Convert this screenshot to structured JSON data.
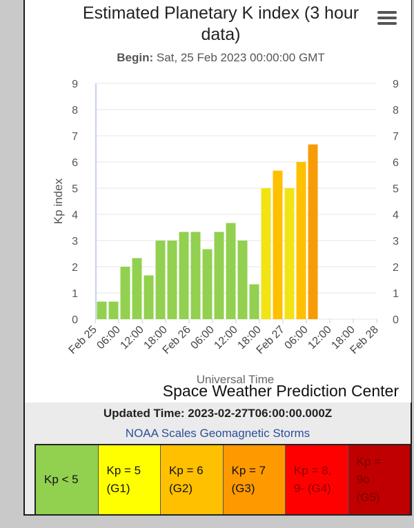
{
  "title": "Estimated Planetary K index (3 hour data)",
  "subtitle_label": "Begin:",
  "subtitle_value": "Sat, 25 Feb 2023 00:00:00 GMT",
  "credit": "Space Weather Prediction Center",
  "updated": "Updated Time: 2023-02-27T06:00:00.000Z",
  "scales_link": "NOAA Scales Geomagnetic Storms",
  "colors": {
    "green": "#92d050",
    "yellow": "#f2e313",
    "amber": "#ffc000",
    "orange": "#f79c06",
    "red": "#ff0000",
    "darkred": "#c00000"
  },
  "scales": [
    {
      "line1": "Kp < 5",
      "line2": "",
      "bg": "#92d050",
      "fg": "#111111"
    },
    {
      "line1": "Kp = 5",
      "line2": "(G1)",
      "bg": "#ffff00",
      "fg": "#111111"
    },
    {
      "line1": "Kp = 6",
      "line2": "(G2)",
      "bg": "#ffc000",
      "fg": "#111111"
    },
    {
      "line1": "Kp = 7",
      "line2": "(G3)",
      "bg": "#ff9900",
      "fg": "#111111"
    },
    {
      "line1": "Kp = 8,",
      "line2": "9- (G4)",
      "bg": "#ff0000",
      "fg": "#8b0000"
    },
    {
      "line1": "Kp =",
      "line2": "9o",
      "line3": "(G5)",
      "bg": "#c00000",
      "fg": "#7a0000"
    }
  ],
  "chart_data": {
    "type": "bar",
    "title": "Estimated Planetary K index (3 hour data)",
    "subtitle": "Begin: Sat, 25 Feb 2023 00:00:00 GMT",
    "xlabel": "Universal Time",
    "ylabel": "Kp index",
    "ylim": [
      0,
      9
    ],
    "yticks": [
      "0",
      "1",
      "2",
      "3",
      "4",
      "5",
      "6",
      "7",
      "8",
      "9"
    ],
    "xticks": [
      "Feb 25",
      "06:00",
      "12:00",
      "18:00",
      "Feb 26",
      "06:00",
      "12:00",
      "18:00",
      "Feb 27",
      "06:00",
      "12:00",
      "18:00",
      "Feb 28"
    ],
    "grid": true,
    "values": [
      0.67,
      0.67,
      2.0,
      2.33,
      1.67,
      3.0,
      3.0,
      3.33,
      3.33,
      2.67,
      3.33,
      3.67,
      3.0,
      1.33,
      5.0,
      5.67,
      5.0,
      6.0,
      6.67
    ],
    "bar_colors": [
      "#92d050",
      "#92d050",
      "#92d050",
      "#92d050",
      "#92d050",
      "#92d050",
      "#92d050",
      "#92d050",
      "#92d050",
      "#92d050",
      "#92d050",
      "#92d050",
      "#92d050",
      "#92d050",
      "#f2e313",
      "#ffc000",
      "#f2e313",
      "#ffc000",
      "#f79c06"
    ]
  }
}
